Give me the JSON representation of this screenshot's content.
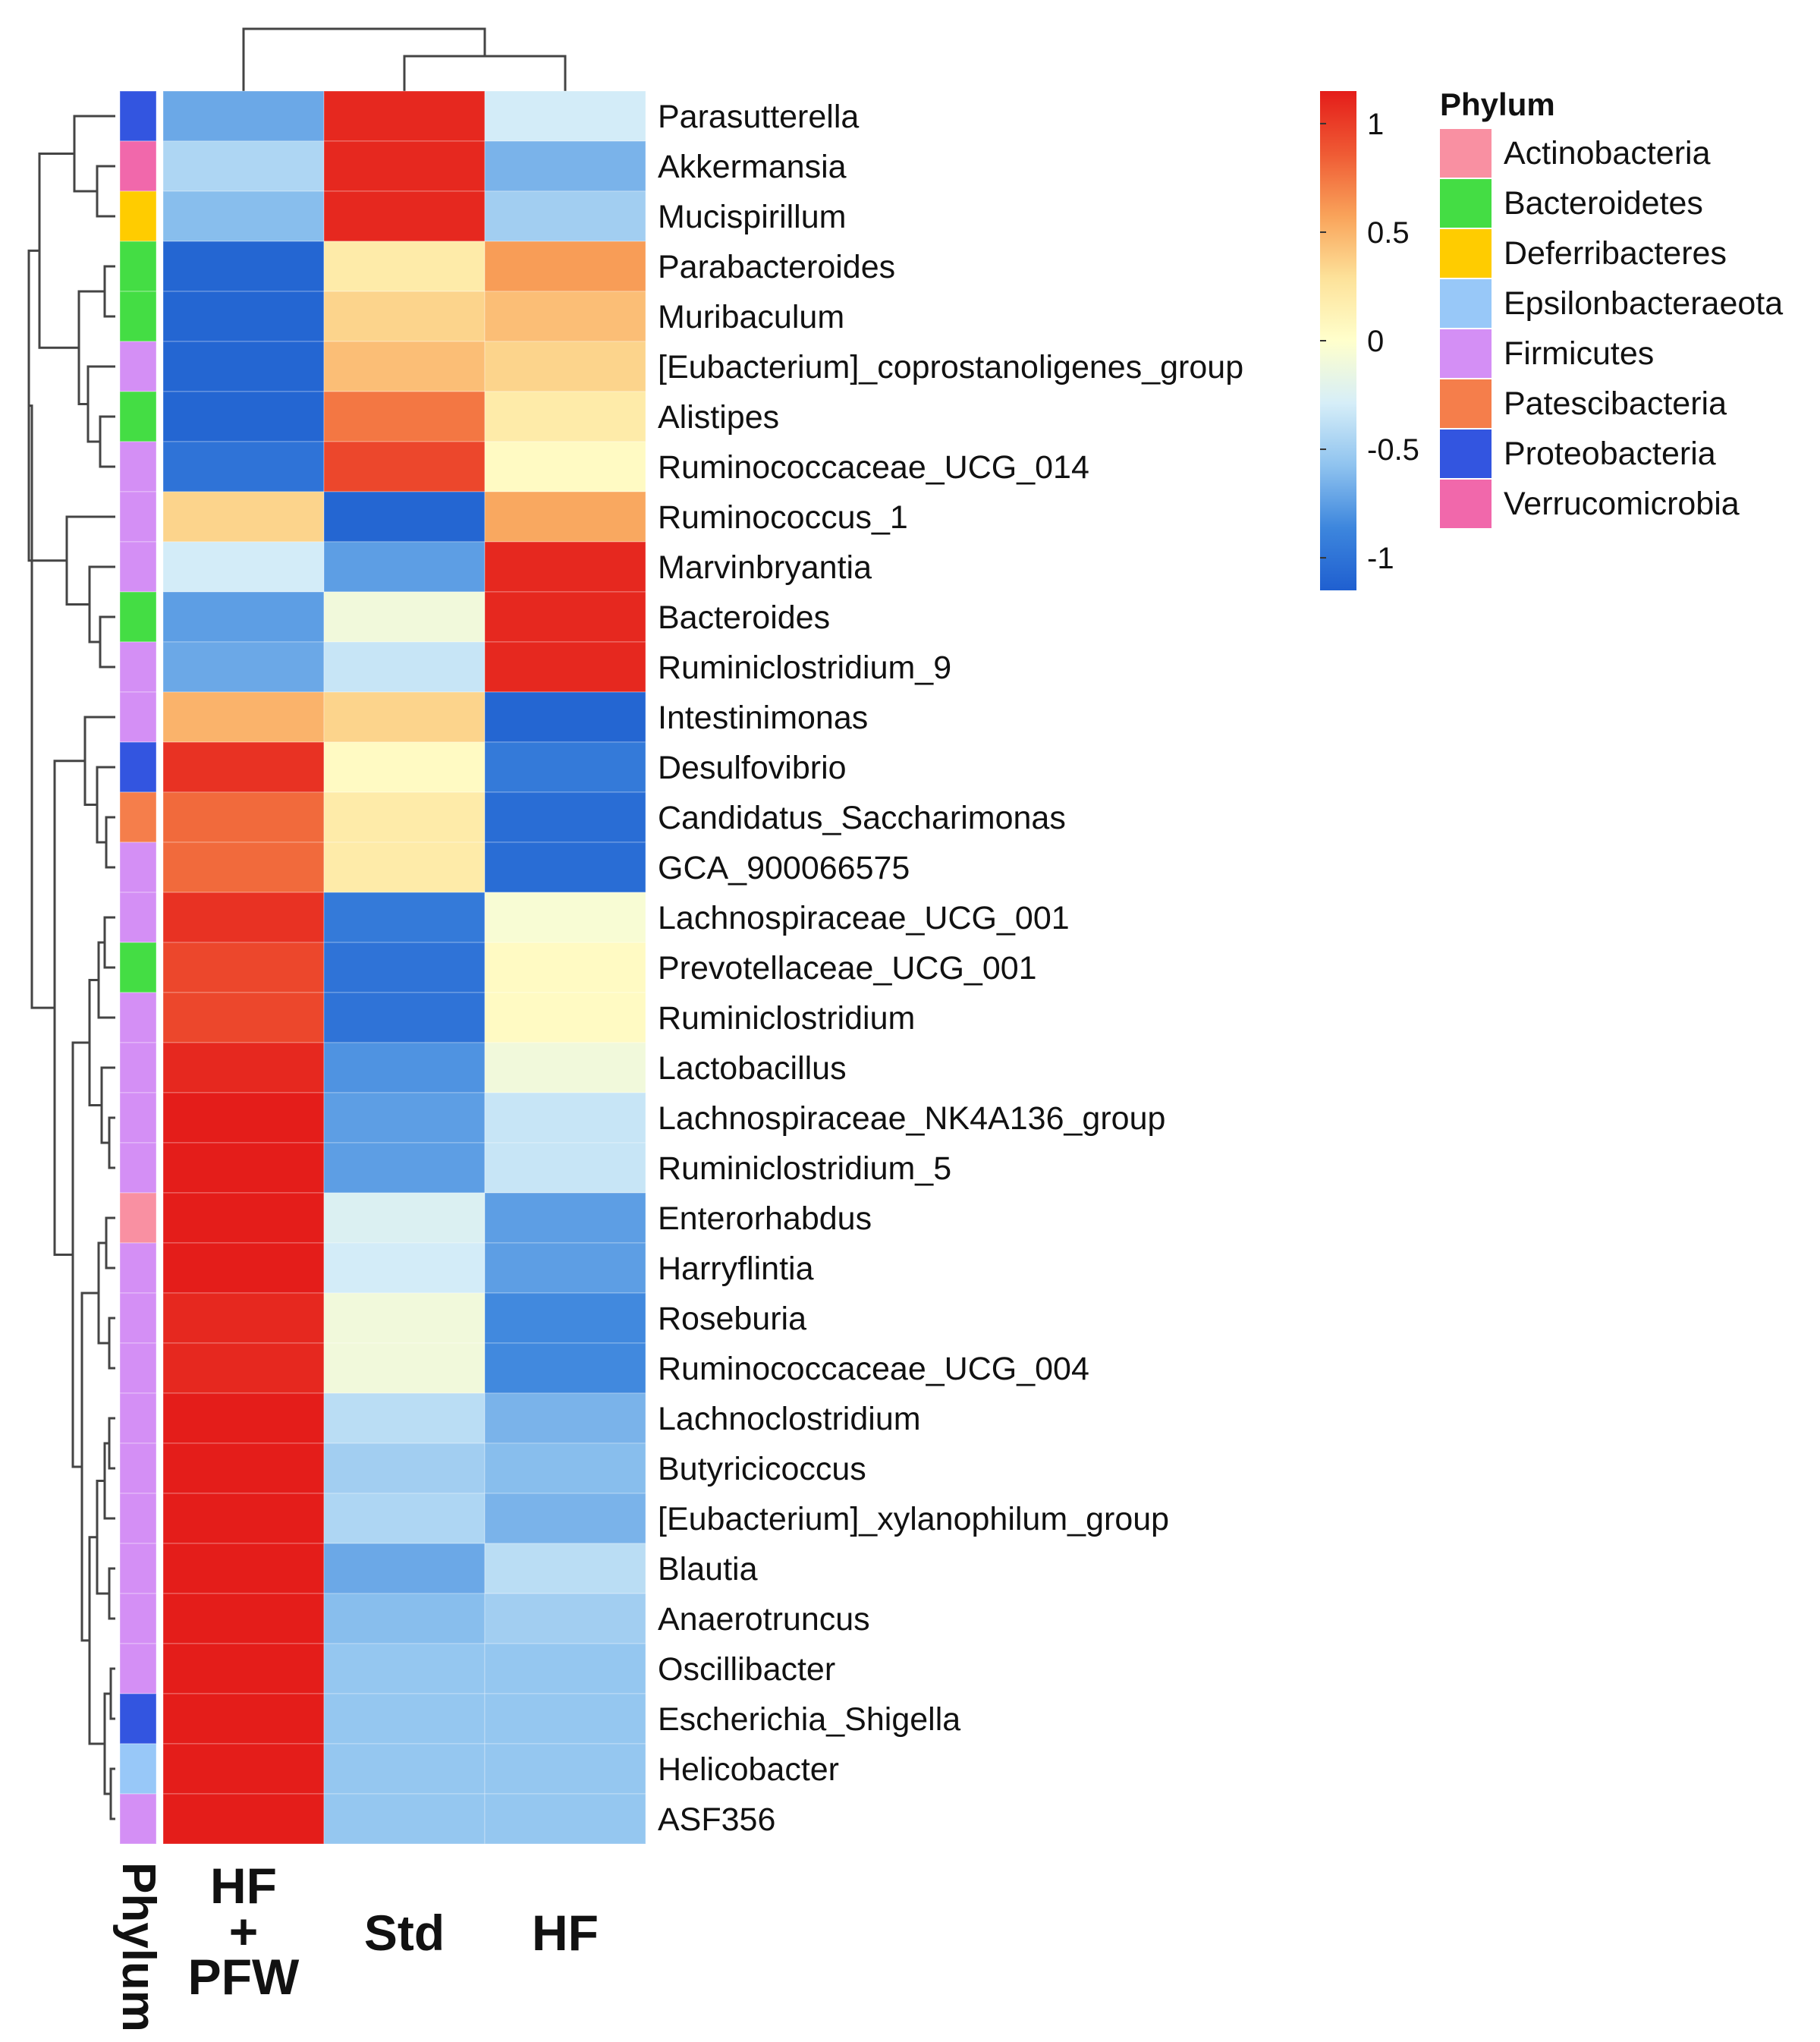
{
  "chart_data": {
    "type": "heatmap",
    "columns": [
      "HF\n+\nPFW",
      "Std",
      "HF"
    ],
    "phylum_axis_label": "Phylum",
    "rows": [
      {
        "name": "Parasutterella",
        "phylum": "Proteobacteria",
        "values": [
          -0.7,
          1.1,
          -0.3
        ]
      },
      {
        "name": "Akkermansia",
        "phylum": "Verrucomicrobia",
        "values": [
          -0.45,
          1.1,
          -0.65
        ]
      },
      {
        "name": "Mucispirillum",
        "phylum": "Deferribacteres",
        "values": [
          -0.6,
          1.1,
          -0.5
        ]
      },
      {
        "name": "Parabacteroides",
        "phylum": "Bacteroidetes",
        "values": [
          -1.1,
          0.2,
          0.6
        ]
      },
      {
        "name": "Muribaculum",
        "phylum": "Bacteroidetes",
        "values": [
          -1.1,
          0.35,
          0.45
        ]
      },
      {
        "name": "[Eubacterium]_coprostanoligenes_group",
        "phylum": "Firmicutes",
        "values": [
          -1.1,
          0.45,
          0.35
        ]
      },
      {
        "name": "Alistipes",
        "phylum": "Bacteroidetes",
        "values": [
          -1.1,
          0.75,
          0.2
        ]
      },
      {
        "name": "Ruminococcaceae_UCG_014",
        "phylum": "Firmicutes",
        "values": [
          -1.0,
          0.95,
          0.05
        ]
      },
      {
        "name": "Ruminococcus_1",
        "phylum": "Firmicutes",
        "values": [
          0.35,
          -1.1,
          0.55
        ]
      },
      {
        "name": "Marvinbryantia",
        "phylum": "Firmicutes",
        "values": [
          -0.3,
          -0.75,
          1.1
        ]
      },
      {
        "name": "Bacteroides",
        "phylum": "Bacteroidetes",
        "values": [
          -0.75,
          -0.1,
          1.1
        ]
      },
      {
        "name": "Ruminiclostridium_9",
        "phylum": "Firmicutes",
        "values": [
          -0.7,
          -0.35,
          1.1
        ]
      },
      {
        "name": "Intestinimonas",
        "phylum": "Firmicutes",
        "values": [
          0.5,
          0.35,
          -1.1
        ]
      },
      {
        "name": "Desulfovibrio",
        "phylum": "Proteobacteria",
        "values": [
          1.05,
          0.05,
          -0.95
        ]
      },
      {
        "name": "Candidatus_Saccharimonas",
        "phylum": "Patescibacteria",
        "values": [
          0.8,
          0.2,
          -1.05
        ]
      },
      {
        "name": "GCA_900066575",
        "phylum": "Firmicutes",
        "values": [
          0.8,
          0.2,
          -1.05
        ]
      },
      {
        "name": "Lachnospiraceae_UCG_001",
        "phylum": "Firmicutes",
        "values": [
          1.05,
          -0.95,
          -0.05
        ]
      },
      {
        "name": "Prevotellaceae_UCG_001",
        "phylum": "Bacteroidetes",
        "values": [
          0.95,
          -1.0,
          0.05
        ]
      },
      {
        "name": "Ruminiclostridium",
        "phylum": "Firmicutes",
        "values": [
          0.95,
          -1.0,
          0.05
        ]
      },
      {
        "name": "Lactobacillus",
        "phylum": "Firmicutes",
        "values": [
          1.1,
          -0.8,
          -0.1
        ]
      },
      {
        "name": "Lachnospiraceae_NK4A136_group",
        "phylum": "Firmicutes",
        "values": [
          1.15,
          -0.75,
          -0.35
        ]
      },
      {
        "name": "Ruminiclostridium_5",
        "phylum": "Firmicutes",
        "values": [
          1.15,
          -0.75,
          -0.35
        ]
      },
      {
        "name": "Enterorhabdus",
        "phylum": "Actinobacteria",
        "values": [
          1.15,
          -0.25,
          -0.75
        ]
      },
      {
        "name": "Harryflintia",
        "phylum": "Firmicutes",
        "values": [
          1.15,
          -0.3,
          -0.75
        ]
      },
      {
        "name": "Roseburia",
        "phylum": "Firmicutes",
        "values": [
          1.1,
          -0.1,
          -0.85
        ]
      },
      {
        "name": "Ruminococcaceae_UCG_004",
        "phylum": "Firmicutes",
        "values": [
          1.1,
          -0.1,
          -0.85
        ]
      },
      {
        "name": "Lachnoclostridium",
        "phylum": "Firmicutes",
        "values": [
          1.15,
          -0.4,
          -0.65
        ]
      },
      {
        "name": "Butyricicoccus",
        "phylum": "Firmicutes",
        "values": [
          1.15,
          -0.5,
          -0.6
        ]
      },
      {
        "name": "[Eubacterium]_xylanophilum_group",
        "phylum": "Firmicutes",
        "values": [
          1.15,
          -0.45,
          -0.65
        ]
      },
      {
        "name": "Blautia",
        "phylum": "Firmicutes",
        "values": [
          1.15,
          -0.7,
          -0.4
        ]
      },
      {
        "name": "Anaerotruncus",
        "phylum": "Firmicutes",
        "values": [
          1.15,
          -0.6,
          -0.5
        ]
      },
      {
        "name": "Oscillibacter",
        "phylum": "Firmicutes",
        "values": [
          1.15,
          -0.55,
          -0.55
        ]
      },
      {
        "name": "Escherichia_Shigella",
        "phylum": "Proteobacteria",
        "values": [
          1.15,
          -0.55,
          -0.55
        ]
      },
      {
        "name": "Helicobacter",
        "phylum": "Epsilonbacteraeota",
        "values": [
          1.15,
          -0.55,
          -0.55
        ]
      },
      {
        "name": "ASF356",
        "phylum": "Firmicutes",
        "values": [
          1.15,
          -0.55,
          -0.55
        ]
      }
    ],
    "color_scale": {
      "min": -1.15,
      "max": 1.15,
      "ticks": [
        1,
        0.5,
        0,
        -0.5,
        -1
      ],
      "tick_labels": [
        "1",
        "0.5",
        "0",
        "-0.5",
        "-1"
      ],
      "stops": [
        "#1f5fd0",
        "#3d86dd",
        "#8fc3ef",
        "#d6eef8",
        "#ffffcc",
        "#fde29a",
        "#f9a35a",
        "#ef5a34",
        "#e41d1a"
      ]
    },
    "legend": {
      "title": "Phylum",
      "position": "top-right",
      "items": [
        {
          "label": "Actinobacteria",
          "color": "#f990a2"
        },
        {
          "label": "Bacteroidetes",
          "color": "#44dd44"
        },
        {
          "label": "Deferribacteres",
          "color": "#ffcc00"
        },
        {
          "label": "Epsilonbacteraeota",
          "color": "#98c8f8"
        },
        {
          "label": "Firmicutes",
          "color": "#d48ff5"
        },
        {
          "label": "Patescibacteria",
          "color": "#f57e4b"
        },
        {
          "label": "Proteobacteria",
          "color": "#3355e0"
        },
        {
          "label": "Verrucomicrobia",
          "color": "#f168ab"
        }
      ]
    },
    "column_dendrogram": "((Std,HF),HF+PFW)",
    "row_dendrogram": true
  }
}
